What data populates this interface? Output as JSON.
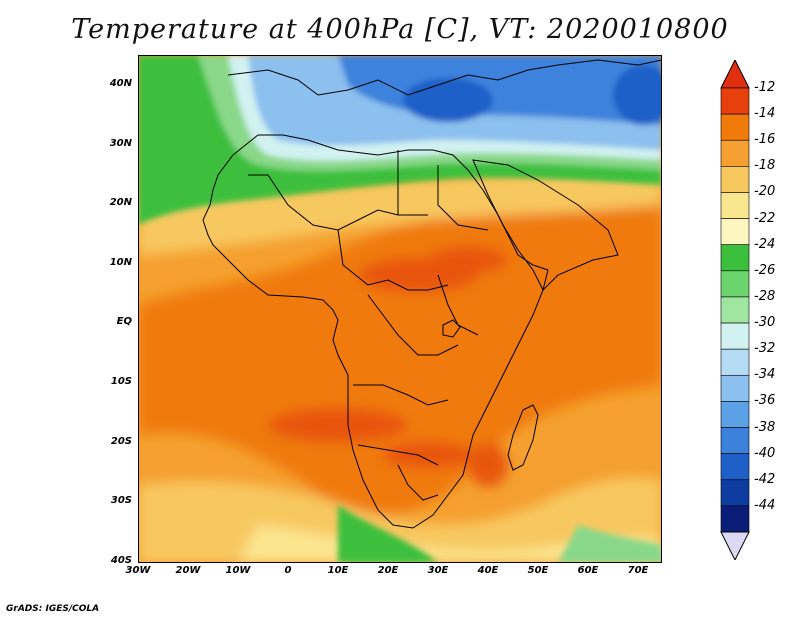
{
  "title": "Temperature at 400hPa [C], VT: 2020010800",
  "credit": "GrADS: IGES/COLA",
  "y_axis_labels": [
    "40N",
    "30N",
    "20N",
    "10N",
    "EQ",
    "10S",
    "20S",
    "30S",
    "40S"
  ],
  "x_axis_labels": [
    "30W",
    "20W",
    "10W",
    "0",
    "10E",
    "20E",
    "30E",
    "40E",
    "50E",
    "60E",
    "70E"
  ],
  "colorbar": {
    "labels": [
      "-12",
      "-14",
      "-16",
      "-18",
      "-20",
      "-22",
      "-24",
      "-26",
      "-28",
      "-30",
      "-32",
      "-34",
      "-36",
      "-38",
      "-40",
      "-42",
      "-44"
    ],
    "colors": [
      "#e8400c",
      "#f07a0a",
      "#f5a030",
      "#f8c860",
      "#fbe690",
      "#fdf6c0",
      "#3cbf3c",
      "#6cd46c",
      "#a0e6a0",
      "#d2f2f2",
      "#b4dcf5",
      "#8cc0ee",
      "#5ca0e6",
      "#3c82dc",
      "#1e60c8",
      "#0e3ca0",
      "#0a1e78"
    ],
    "over_color": "#e03010",
    "under_color": "#ddd8f4"
  },
  "map": {
    "colors": {
      "warm_max": "#e8560f",
      "warm": "#f07a0a",
      "mid": "#f5a030",
      "light": "#f8c860",
      "pale": "#fbe690",
      "green": "#3cbf3c",
      "green_light": "#8ad88a",
      "cyan": "#d2f2f2",
      "blue_light": "#8cc0ee",
      "blue": "#3c82dc",
      "blue_dark": "#1e60c8"
    }
  }
}
